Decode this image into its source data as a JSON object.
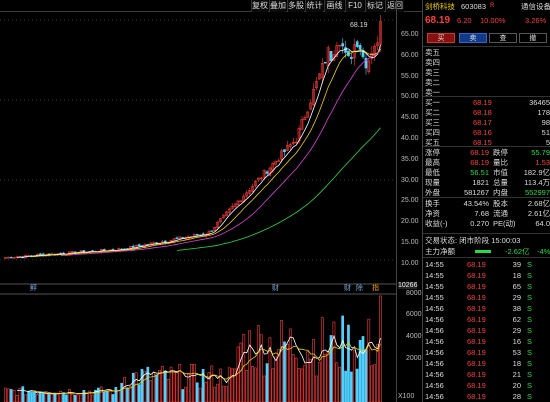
{
  "toolbar": {
    "items": [
      "复权",
      "叠加",
      "多股",
      "统计",
      "画线",
      "F10",
      "标记",
      "返回"
    ]
  },
  "colors": {
    "up": "#ff3b3b",
    "down": "#4fd0ff",
    "ma5": "#ffffff",
    "ma10": "#f0d000",
    "ma20": "#e040e0",
    "ma60": "#22dd44",
    "vol_ma": "#f0d000"
  },
  "chart": {
    "peak_label": "68.19",
    "price_axis": [
      "65.00",
      "60.00",
      "55.00",
      "50.00",
      "45.00",
      "40.00",
      "35.00",
      "30.00",
      "25.00",
      "20.00",
      "15.00",
      "10.00"
    ],
    "price_range": [
      8.5,
      70.5
    ],
    "markers": [
      "鮃",
      "财",
      "财",
      "除",
      "指"
    ],
    "vol_axis": [
      "10266",
      "8000",
      "6000",
      "4000",
      "2000"
    ],
    "vol_unit": "X100",
    "vol_range": [
      0,
      10266
    ]
  },
  "chart_data": {
    "type": "candlestick",
    "title": "",
    "ylim": [
      8.5,
      70.5
    ],
    "ma_lines": [
      "MA5",
      "MA10",
      "MA20",
      "MA60"
    ],
    "last_close": 68.19
  },
  "panel": {
    "name": "剑桥科技",
    "code": "603083",
    "flag": "R",
    "sector": "通信设备",
    "price": "68.19",
    "change": "6.20",
    "pct": "10.00%",
    "ratio": "3.26%",
    "buttons": [
      "买",
      "卖",
      "查",
      "撤"
    ],
    "asks": [
      {
        "label": "卖五",
        "p": "",
        "v": ""
      },
      {
        "label": "卖四",
        "p": "",
        "v": ""
      },
      {
        "label": "卖三",
        "p": "",
        "v": ""
      },
      {
        "label": "卖二",
        "p": "",
        "v": ""
      },
      {
        "label": "卖一",
        "p": "",
        "v": ""
      }
    ],
    "bids": [
      {
        "label": "买一",
        "p": "68.19",
        "v": "36465"
      },
      {
        "label": "买二",
        "p": "68.18",
        "v": "178"
      },
      {
        "label": "买三",
        "p": "68.17",
        "v": "98"
      },
      {
        "label": "买四",
        "p": "68.16",
        "v": "51"
      },
      {
        "label": "买五",
        "p": "68.15",
        "v": "5"
      }
    ],
    "stats": [
      {
        "a": "涨停",
        "av": "68.19",
        "b": "跌停",
        "bv": "55.79"
      },
      {
        "a": "最高",
        "av": "68.19",
        "b": "量比",
        "bv": "1.53"
      },
      {
        "a": "最低",
        "av": "56.51",
        "b": "市值",
        "bv": "182.9亿"
      },
      {
        "a": "现量",
        "av": "1821",
        "b": "总量",
        "bv": "113.4万"
      },
      {
        "a": "外盘",
        "av": "581267",
        "b": "内盘",
        "bv": "552997"
      }
    ],
    "stats2": [
      {
        "a": "换手",
        "av": "43.54%",
        "b": "股本",
        "bv": "2.68亿"
      },
      {
        "a": "净资",
        "av": "7.68",
        "b": "流通",
        "bv": "2.61亿"
      },
      {
        "a": "收益(-)",
        "av": "0.270",
        "b": "PE(动)",
        "bv": "64.0"
      }
    ],
    "status": "交易状态: 闭市阶段 15:00:03",
    "netflow_label": "主力净额",
    "netflow_val": "-2.62亿",
    "netflow_pct": "-4%",
    "ticks": [
      {
        "t": "14:55",
        "p": "68.19",
        "v": "39",
        "d": "S"
      },
      {
        "t": "14:55",
        "p": "68.19",
        "v": "18",
        "d": "S"
      },
      {
        "t": "14:55",
        "p": "68.19",
        "v": "65",
        "d": "S"
      },
      {
        "t": "14:55",
        "p": "68.19",
        "v": "29",
        "d": "S"
      },
      {
        "t": "14:56",
        "p": "68.19",
        "v": "38",
        "d": "S"
      },
      {
        "t": "14:56",
        "p": "68.19",
        "v": "62",
        "d": "S"
      },
      {
        "t": "14:56",
        "p": "68.19",
        "v": "29",
        "d": "S"
      },
      {
        "t": "14:56",
        "p": "68.19",
        "v": "16",
        "d": "S"
      },
      {
        "t": "14:56",
        "p": "68.19",
        "v": "53",
        "d": "S"
      },
      {
        "t": "14:56",
        "p": "68.19",
        "v": "18",
        "d": "S"
      },
      {
        "t": "14:56",
        "p": "68.19",
        "v": "21",
        "d": "S"
      },
      {
        "t": "14:56",
        "p": "68.19",
        "v": "20",
        "d": "S"
      },
      {
        "t": "14:56",
        "p": "68.19",
        "v": "28",
        "d": "S"
      }
    ]
  }
}
